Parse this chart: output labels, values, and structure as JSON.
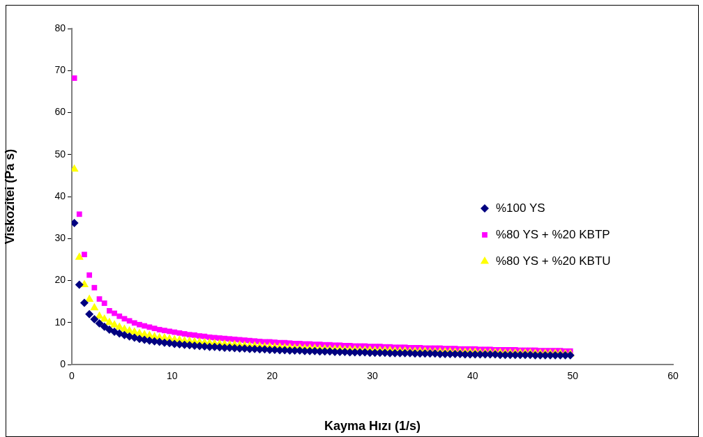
{
  "chart_data": {
    "type": "scatter",
    "xlabel": "Kayma Hızı (1/s)",
    "ylabel": "Viskozitei (Pa s)",
    "x": [
      0.25,
      0.75,
      1.25,
      1.75,
      2.25,
      2.75,
      3.25,
      3.75,
      4.25,
      4.75,
      5.25,
      5.75,
      6.25,
      6.75,
      7.25,
      7.75,
      8.25,
      8.75,
      9.25,
      9.75,
      10.25,
      10.75,
      11.25,
      11.75,
      12.25,
      12.75,
      13.25,
      13.75,
      14.25,
      14.75,
      15.25,
      15.75,
      16.25,
      16.75,
      17.25,
      17.75,
      18.25,
      18.75,
      19.25,
      19.75,
      20.25,
      20.75,
      21.25,
      21.75,
      22.25,
      22.75,
      23.25,
      23.75,
      24.25,
      24.75,
      25.25,
      25.75,
      26.25,
      26.75,
      27.25,
      27.75,
      28.25,
      28.75,
      29.25,
      29.75,
      30.25,
      30.75,
      31.25,
      31.75,
      32.25,
      32.75,
      33.25,
      33.75,
      34.25,
      34.75,
      35.25,
      35.75,
      36.25,
      36.75,
      37.25,
      37.75,
      38.25,
      38.75,
      39.25,
      39.75,
      40.25,
      40.75,
      41.25,
      41.75,
      42.25,
      42.75,
      43.25,
      43.75,
      44.25,
      44.75,
      45.25,
      45.75,
      46.25,
      46.75,
      47.25,
      47.75,
      48.25,
      48.75,
      49.25,
      49.75
    ],
    "series": [
      {
        "name": "%100 YS",
        "color": "#000080",
        "marker": "diamond",
        "values": [
          33.7,
          19.0,
          14.7,
          12.0,
          10.8,
          9.8,
          9.0,
          8.3,
          7.8,
          7.4,
          7.0,
          6.7,
          6.4,
          6.1,
          5.9,
          5.7,
          5.5,
          5.4,
          5.2,
          5.1,
          4.9,
          4.8,
          4.7,
          4.6,
          4.5,
          4.4,
          4.3,
          4.2,
          4.2,
          4.1,
          4.0,
          4.0,
          3.9,
          3.8,
          3.8,
          3.7,
          3.7,
          3.6,
          3.6,
          3.5,
          3.5,
          3.4,
          3.4,
          3.3,
          3.3,
          3.3,
          3.2,
          3.2,
          3.2,
          3.1,
          3.1,
          3.1,
          3.0,
          3.0,
          3.0,
          2.9,
          2.9,
          2.9,
          2.9,
          2.8,
          2.8,
          2.8,
          2.8,
          2.7,
          2.7,
          2.7,
          2.7,
          2.7,
          2.6,
          2.6,
          2.6,
          2.6,
          2.6,
          2.5,
          2.5,
          2.5,
          2.5,
          2.5,
          2.4,
          2.4,
          2.4,
          2.4,
          2.4,
          2.4,
          2.4,
          2.3,
          2.3,
          2.3,
          2.3,
          2.3,
          2.3,
          2.3,
          2.2,
          2.2,
          2.2,
          2.2,
          2.2,
          2.2,
          2.2,
          2.2
        ]
      },
      {
        "name": "%80 YS + %20 KBTP",
        "color": "#ff00ff",
        "marker": "square",
        "values": [
          68.2,
          35.8,
          26.2,
          21.3,
          18.3,
          15.6,
          14.6,
          12.8,
          12.2,
          11.5,
          10.9,
          10.4,
          9.9,
          9.5,
          9.2,
          8.9,
          8.6,
          8.3,
          8.1,
          7.9,
          7.7,
          7.5,
          7.3,
          7.1,
          7.0,
          6.8,
          6.7,
          6.5,
          6.4,
          6.3,
          6.2,
          6.1,
          6.0,
          5.9,
          5.8,
          5.7,
          5.6,
          5.5,
          5.4,
          5.4,
          5.3,
          5.2,
          5.2,
          5.1,
          5.0,
          5.0,
          4.9,
          4.9,
          4.8,
          4.8,
          4.7,
          4.7,
          4.6,
          4.6,
          4.5,
          4.5,
          4.4,
          4.4,
          4.4,
          4.3,
          4.3,
          4.3,
          4.2,
          4.2,
          4.1,
          4.1,
          4.1,
          4.0,
          4.0,
          4.0,
          3.9,
          3.9,
          3.9,
          3.9,
          3.8,
          3.8,
          3.8,
          3.7,
          3.7,
          3.7,
          3.7,
          3.6,
          3.6,
          3.6,
          3.5,
          3.5,
          3.5,
          3.5,
          3.5,
          3.4,
          3.4,
          3.4,
          3.4,
          3.3,
          3.3,
          3.3,
          3.3,
          3.3,
          3.2,
          3.2
        ]
      },
      {
        "name": "%80 YS + %20 KBTU",
        "color": "#ffff00",
        "marker": "triangle",
        "values": [
          46.5,
          25.5,
          19.0,
          15.5,
          13.5,
          11.5,
          10.8,
          10.0,
          9.4,
          8.9,
          8.4,
          8.0,
          7.7,
          7.4,
          7.1,
          6.9,
          6.6,
          6.4,
          6.3,
          6.1,
          5.9,
          5.8,
          5.6,
          5.5,
          5.4,
          5.3,
          5.2,
          5.1,
          5.0,
          4.9,
          4.8,
          4.7,
          4.7,
          4.6,
          4.5,
          4.4,
          4.4,
          4.3,
          4.2,
          4.2,
          4.1,
          4.1,
          4.0,
          4.0,
          3.9,
          3.9,
          3.8,
          3.8,
          3.8,
          3.7,
          3.7,
          3.6,
          3.6,
          3.6,
          3.5,
          3.5,
          3.5,
          3.4,
          3.4,
          3.4,
          3.3,
          3.3,
          3.3,
          3.3,
          3.2,
          3.2,
          3.2,
          3.1,
          3.1,
          3.1,
          3.1,
          3.0,
          3.0,
          3.0,
          3.0,
          3.0,
          2.9,
          2.9,
          2.9,
          2.9,
          2.9,
          2.8,
          2.8,
          2.8,
          2.8,
          2.8,
          2.7,
          2.7,
          2.7,
          2.7,
          2.7,
          2.7,
          2.6,
          2.6,
          2.6,
          2.6,
          2.6,
          2.6,
          2.5,
          2.5
        ]
      }
    ],
    "xlim": [
      0,
      60
    ],
    "xticks": [
      0,
      10,
      20,
      30,
      40,
      50,
      60
    ],
    "ylim": [
      0,
      80
    ],
    "yticks": [
      0,
      10,
      20,
      30,
      40,
      50,
      60,
      70,
      80
    ],
    "grid": false,
    "legend": "right"
  }
}
